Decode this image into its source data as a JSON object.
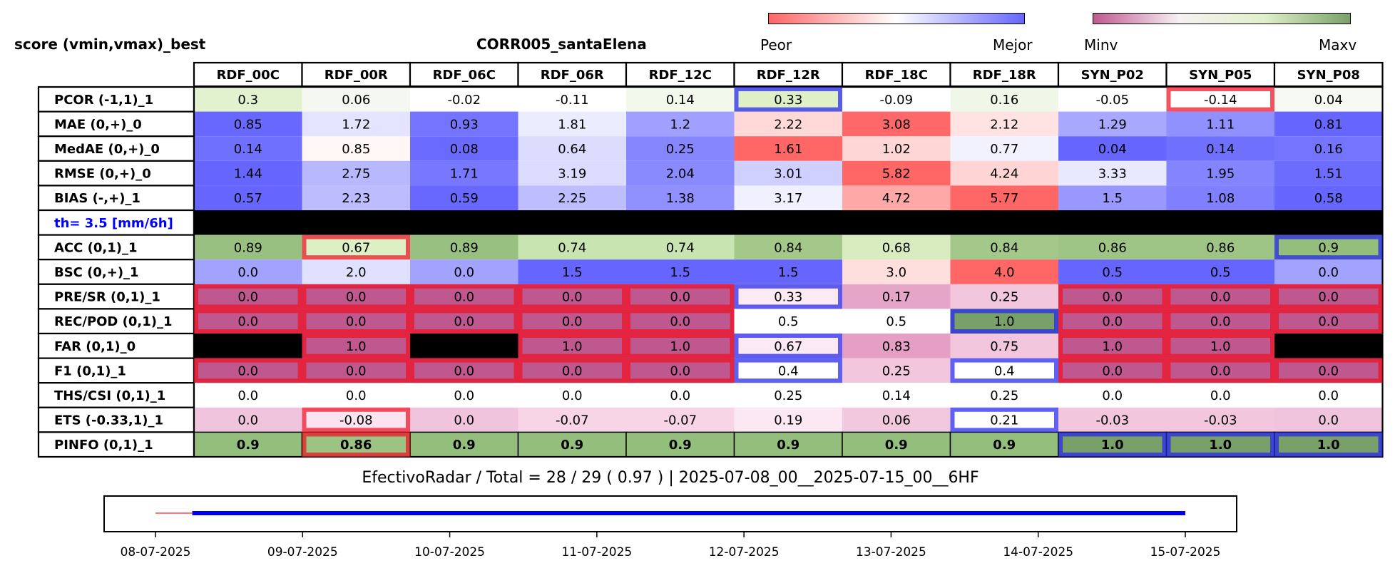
{
  "header": {
    "left_title": "score (vmin,vmax)_best",
    "center_title": "CORR005_santaElena"
  },
  "colorbars": [
    {
      "low_label": "Peor",
      "high_label": "Mejor",
      "colors": [
        "#ff6666",
        "#ffffff",
        "#6666ff"
      ]
    },
    {
      "low_label": "Minv",
      "high_label": "Maxv",
      "colors": [
        "#c05890",
        "#f7f0f4",
        "#e0f0c8",
        "#7aa06a"
      ]
    }
  ],
  "chart_data": {
    "type": "table",
    "columns": [
      "RDF_00C",
      "RDF_00R",
      "RDF_06C",
      "RDF_06R",
      "RDF_12C",
      "RDF_12R",
      "RDF_18C",
      "RDF_18R",
      "SYN_P02",
      "SYN_P05",
      "SYN_P08"
    ],
    "rows": [
      {
        "label": "PCOR (-1,1)_1",
        "values": [
          "0.3",
          "0.06",
          "-0.02",
          "-0.11",
          "0.14",
          "0.33",
          "-0.09",
          "0.16",
          "-0.05",
          "-0.14",
          "0.04"
        ],
        "colors": [
          "#e2f2cf",
          "#f4f8f0",
          "#ffffff",
          "#ffffff",
          "#f2f8ec",
          "#dff0c9",
          "#ffffff",
          "#f0f6e8",
          "#ffffff",
          "#ffffff",
          "#f7faf3"
        ],
        "highlights": [
          null,
          null,
          null,
          null,
          null,
          "blue",
          null,
          null,
          null,
          "red",
          null
        ]
      },
      {
        "label": "MAE (0,+)_0",
        "values": [
          "0.85",
          "1.72",
          "0.93",
          "1.81",
          "1.2",
          "2.22",
          "3.08",
          "2.12",
          "1.29",
          "1.11",
          "0.81"
        ],
        "colors": [
          "#6868ff",
          "#e4e4ff",
          "#7474ff",
          "#ececff",
          "#a0a0ff",
          "#ffd8d8",
          "#ff6868",
          "#ffe2e2",
          "#a8a8ff",
          "#9090ff",
          "#6666ff"
        ],
        "highlights": [
          null,
          null,
          null,
          null,
          null,
          null,
          null,
          null,
          null,
          null,
          null
        ]
      },
      {
        "label": "MedAE (0,+)_0",
        "values": [
          "0.14",
          "0.85",
          "0.08",
          "0.64",
          "0.25",
          "1.61",
          "1.02",
          "0.77",
          "0.04",
          "0.14",
          "0.16"
        ],
        "colors": [
          "#7070ff",
          "#fff6f6",
          "#6a6aff",
          "#dcdcff",
          "#8686ff",
          "#ff6666",
          "#ffd6d6",
          "#f2f2ff",
          "#6666ff",
          "#7070ff",
          "#7474ff"
        ],
        "highlights": [
          null,
          null,
          null,
          null,
          null,
          null,
          null,
          null,
          null,
          null,
          null
        ]
      },
      {
        "label": "RMSE (0,+)_0",
        "values": [
          "1.44",
          "2.75",
          "1.71",
          "3.19",
          "2.04",
          "3.01",
          "5.82",
          "4.24",
          "3.33",
          "1.95",
          "1.51"
        ],
        "colors": [
          "#6666ff",
          "#b8b8ff",
          "#7878ff",
          "#dcdcff",
          "#8a8aff",
          "#d0d0ff",
          "#ff6666",
          "#ffd4d4",
          "#e8e8ff",
          "#8484ff",
          "#6c6cff"
        ],
        "highlights": [
          null,
          null,
          null,
          null,
          null,
          null,
          null,
          null,
          null,
          null,
          null
        ]
      },
      {
        "label": "BIAS (-,+)_1",
        "values": [
          "0.57",
          "2.23",
          "0.59",
          "2.25",
          "1.38",
          "3.17",
          "4.72",
          "5.77",
          "1.5",
          "1.08",
          "0.58"
        ],
        "colors": [
          "#6666ff",
          "#bcbcff",
          "#6868ff",
          "#bebeff",
          "#9090ff",
          "#f0f0ff",
          "#ffa8a8",
          "#ff6666",
          "#9898ff",
          "#8080ff",
          "#6666ff"
        ],
        "highlights": [
          null,
          null,
          null,
          null,
          null,
          null,
          null,
          null,
          null,
          null,
          null
        ]
      },
      {
        "label": "th= 3.5 [mm/6h]",
        "separator": true,
        "values": [
          "",
          "",
          "",
          "",
          "",
          "",
          "",
          "",
          "",
          "",
          ""
        ],
        "colors": [
          "#000000",
          "#000000",
          "#000000",
          "#000000",
          "#000000",
          "#000000",
          "#000000",
          "#000000",
          "#000000",
          "#000000",
          "#000000"
        ],
        "highlights": [
          null,
          null,
          null,
          null,
          null,
          null,
          null,
          null,
          null,
          null,
          null
        ]
      },
      {
        "label": "ACC (0,1)_1",
        "values": [
          "0.89",
          "0.67",
          "0.89",
          "0.74",
          "0.74",
          "0.84",
          "0.68",
          "0.84",
          "0.86",
          "0.86",
          "0.9"
        ],
        "colors": [
          "#98c080",
          "#ddefc4",
          "#98c080",
          "#c8e4b0",
          "#c8e4b0",
          "#a4c88a",
          "#d8ecc0",
          "#a4c88a",
          "#9ec486",
          "#9ec486",
          "#94be7c"
        ],
        "highlights": [
          null,
          "red",
          null,
          null,
          null,
          null,
          null,
          null,
          null,
          null,
          "blue"
        ]
      },
      {
        "label": "BSC (0,+)_1",
        "values": [
          "0.0",
          "2.0",
          "0.0",
          "1.5",
          "1.5",
          "1.5",
          "3.0",
          "4.0",
          "0.5",
          "0.5",
          "0.0"
        ],
        "colors": [
          "#a2a2ff",
          "#e0e0ff",
          "#a2a2ff",
          "#6666ff",
          "#6666ff",
          "#6666ff",
          "#ffdede",
          "#ff6666",
          "#6666ff",
          "#6666ff",
          "#a2a2ff"
        ],
        "highlights": [
          null,
          null,
          null,
          null,
          null,
          null,
          null,
          null,
          null,
          null,
          null
        ]
      },
      {
        "label": "PRE/SR (0,1)_1",
        "values": [
          "0.0",
          "0.0",
          "0.0",
          "0.0",
          "0.0",
          "0.33",
          "0.17",
          "0.25",
          "0.0",
          "0.0",
          "0.0"
        ],
        "colors": [
          "#c05890",
          "#c05890",
          "#c05890",
          "#c05890",
          "#c05890",
          "#fbeaf3",
          "#e5a5c8",
          "#f2c6dd",
          "#c05890",
          "#c05890",
          "#c05890"
        ],
        "highlights": [
          "red",
          "red",
          "red",
          "red",
          "red",
          "blue",
          null,
          null,
          "red",
          "red",
          "red"
        ]
      },
      {
        "label": "REC/POD (0,1)_1",
        "values": [
          "0.0",
          "0.0",
          "0.0",
          "0.0",
          "0.0",
          "0.5",
          "0.5",
          "1.0",
          "0.0",
          "0.0",
          "0.0"
        ],
        "colors": [
          "#c05890",
          "#c05890",
          "#c05890",
          "#c05890",
          "#c05890",
          "#ffffff",
          "#ffffff",
          "#7aa06a",
          "#c05890",
          "#c05890",
          "#c05890"
        ],
        "highlights": [
          "red",
          "red",
          "red",
          "red",
          "red",
          null,
          null,
          "blue",
          "red",
          "red",
          "red"
        ]
      },
      {
        "label": "FAR (0,1)_0",
        "values": [
          "",
          "1.0",
          "",
          "1.0",
          "1.0",
          "0.67",
          "0.83",
          "0.75",
          "1.0",
          "1.0",
          ""
        ],
        "colors": [
          "#000000",
          "#c05890",
          "#000000",
          "#c05890",
          "#c05890",
          "#fbeaf3",
          "#e59ec4",
          "#f2c6dd",
          "#c05890",
          "#c05890",
          "#000000"
        ],
        "highlights": [
          null,
          "red",
          null,
          "red",
          "red",
          "blue",
          null,
          null,
          "red",
          "red",
          null
        ]
      },
      {
        "label": "F1 (0,1)_1",
        "values": [
          "0.0",
          "0.0",
          "0.0",
          "0.0",
          "0.0",
          "0.4",
          "0.25",
          "0.4",
          "0.0",
          "0.0",
          "0.0"
        ],
        "colors": [
          "#c05890",
          "#c05890",
          "#c05890",
          "#c05890",
          "#c05890",
          "#ffffff",
          "#f2c6dd",
          "#ffffff",
          "#c05890",
          "#c05890",
          "#c05890"
        ],
        "highlights": [
          "red",
          "red",
          "red",
          "red",
          "red",
          "blue",
          null,
          "blue",
          "red",
          "red",
          "red"
        ]
      },
      {
        "label": "THS/CSI (0,1)_1",
        "values": [
          "0.0",
          "0.0",
          "0.0",
          "0.0",
          "0.0",
          "0.25",
          "0.14",
          "0.25",
          "0.0",
          "0.0",
          "0.0"
        ],
        "colors": [
          "#ffffff",
          "#ffffff",
          "#ffffff",
          "#ffffff",
          "#ffffff",
          "#ffffff",
          "#ffffff",
          "#ffffff",
          "#ffffff",
          "#ffffff",
          "#ffffff"
        ],
        "highlights": [
          null,
          null,
          null,
          null,
          null,
          null,
          null,
          null,
          null,
          null,
          null
        ]
      },
      {
        "label": "ETS (-0.33,1)_1",
        "values": [
          "0.0",
          "-0.08",
          "0.0",
          "-0.07",
          "-0.07",
          "0.19",
          "0.06",
          "0.21",
          "-0.03",
          "-0.03",
          "0.0"
        ],
        "colors": [
          "#f0c4dc",
          "#fbe4ef",
          "#f0c4dc",
          "#f7d4e6",
          "#f7d4e6",
          "#fce8f2",
          "#f2c8de",
          "#ffffff",
          "#f2c6dd",
          "#f2c6dd",
          "#f0c4dc"
        ],
        "highlights": [
          null,
          "red",
          null,
          null,
          null,
          null,
          null,
          "blue",
          null,
          null,
          null
        ]
      },
      {
        "label": "PINFO (0,1)_1",
        "bold": true,
        "values": [
          "0.9",
          "0.86",
          "0.9",
          "0.9",
          "0.9",
          "0.9",
          "0.9",
          "0.9",
          "1.0",
          "1.0",
          "1.0"
        ],
        "colors": [
          "#94be7c",
          "#9cc284",
          "#94be7c",
          "#94be7c",
          "#94be7c",
          "#94be7c",
          "#94be7c",
          "#94be7c",
          "#7aa06a",
          "#7aa06a",
          "#7aa06a"
        ],
        "highlights": [
          null,
          "red",
          null,
          null,
          null,
          null,
          null,
          null,
          "blue",
          "blue",
          "blue"
        ]
      }
    ],
    "footer": "EfectivoRadar / Total  =  28 / 29 ( 0.97 ) | 2025-07-08_00__2025-07-15_00__6HF",
    "timeline": {
      "ticks": [
        "08-07-2025",
        "09-07-2025",
        "10-07-2025",
        "11-07-2025",
        "12-07-2025",
        "13-07-2025",
        "14-07-2025",
        "15-07-2025"
      ],
      "xlim": [
        0,
        7
      ],
      "missing_segment": {
        "start": 0,
        "end": 0.25,
        "color": "#ff7777"
      },
      "valid_segment": {
        "start": 0.25,
        "end": 7,
        "color": "#0000ee"
      }
    }
  }
}
